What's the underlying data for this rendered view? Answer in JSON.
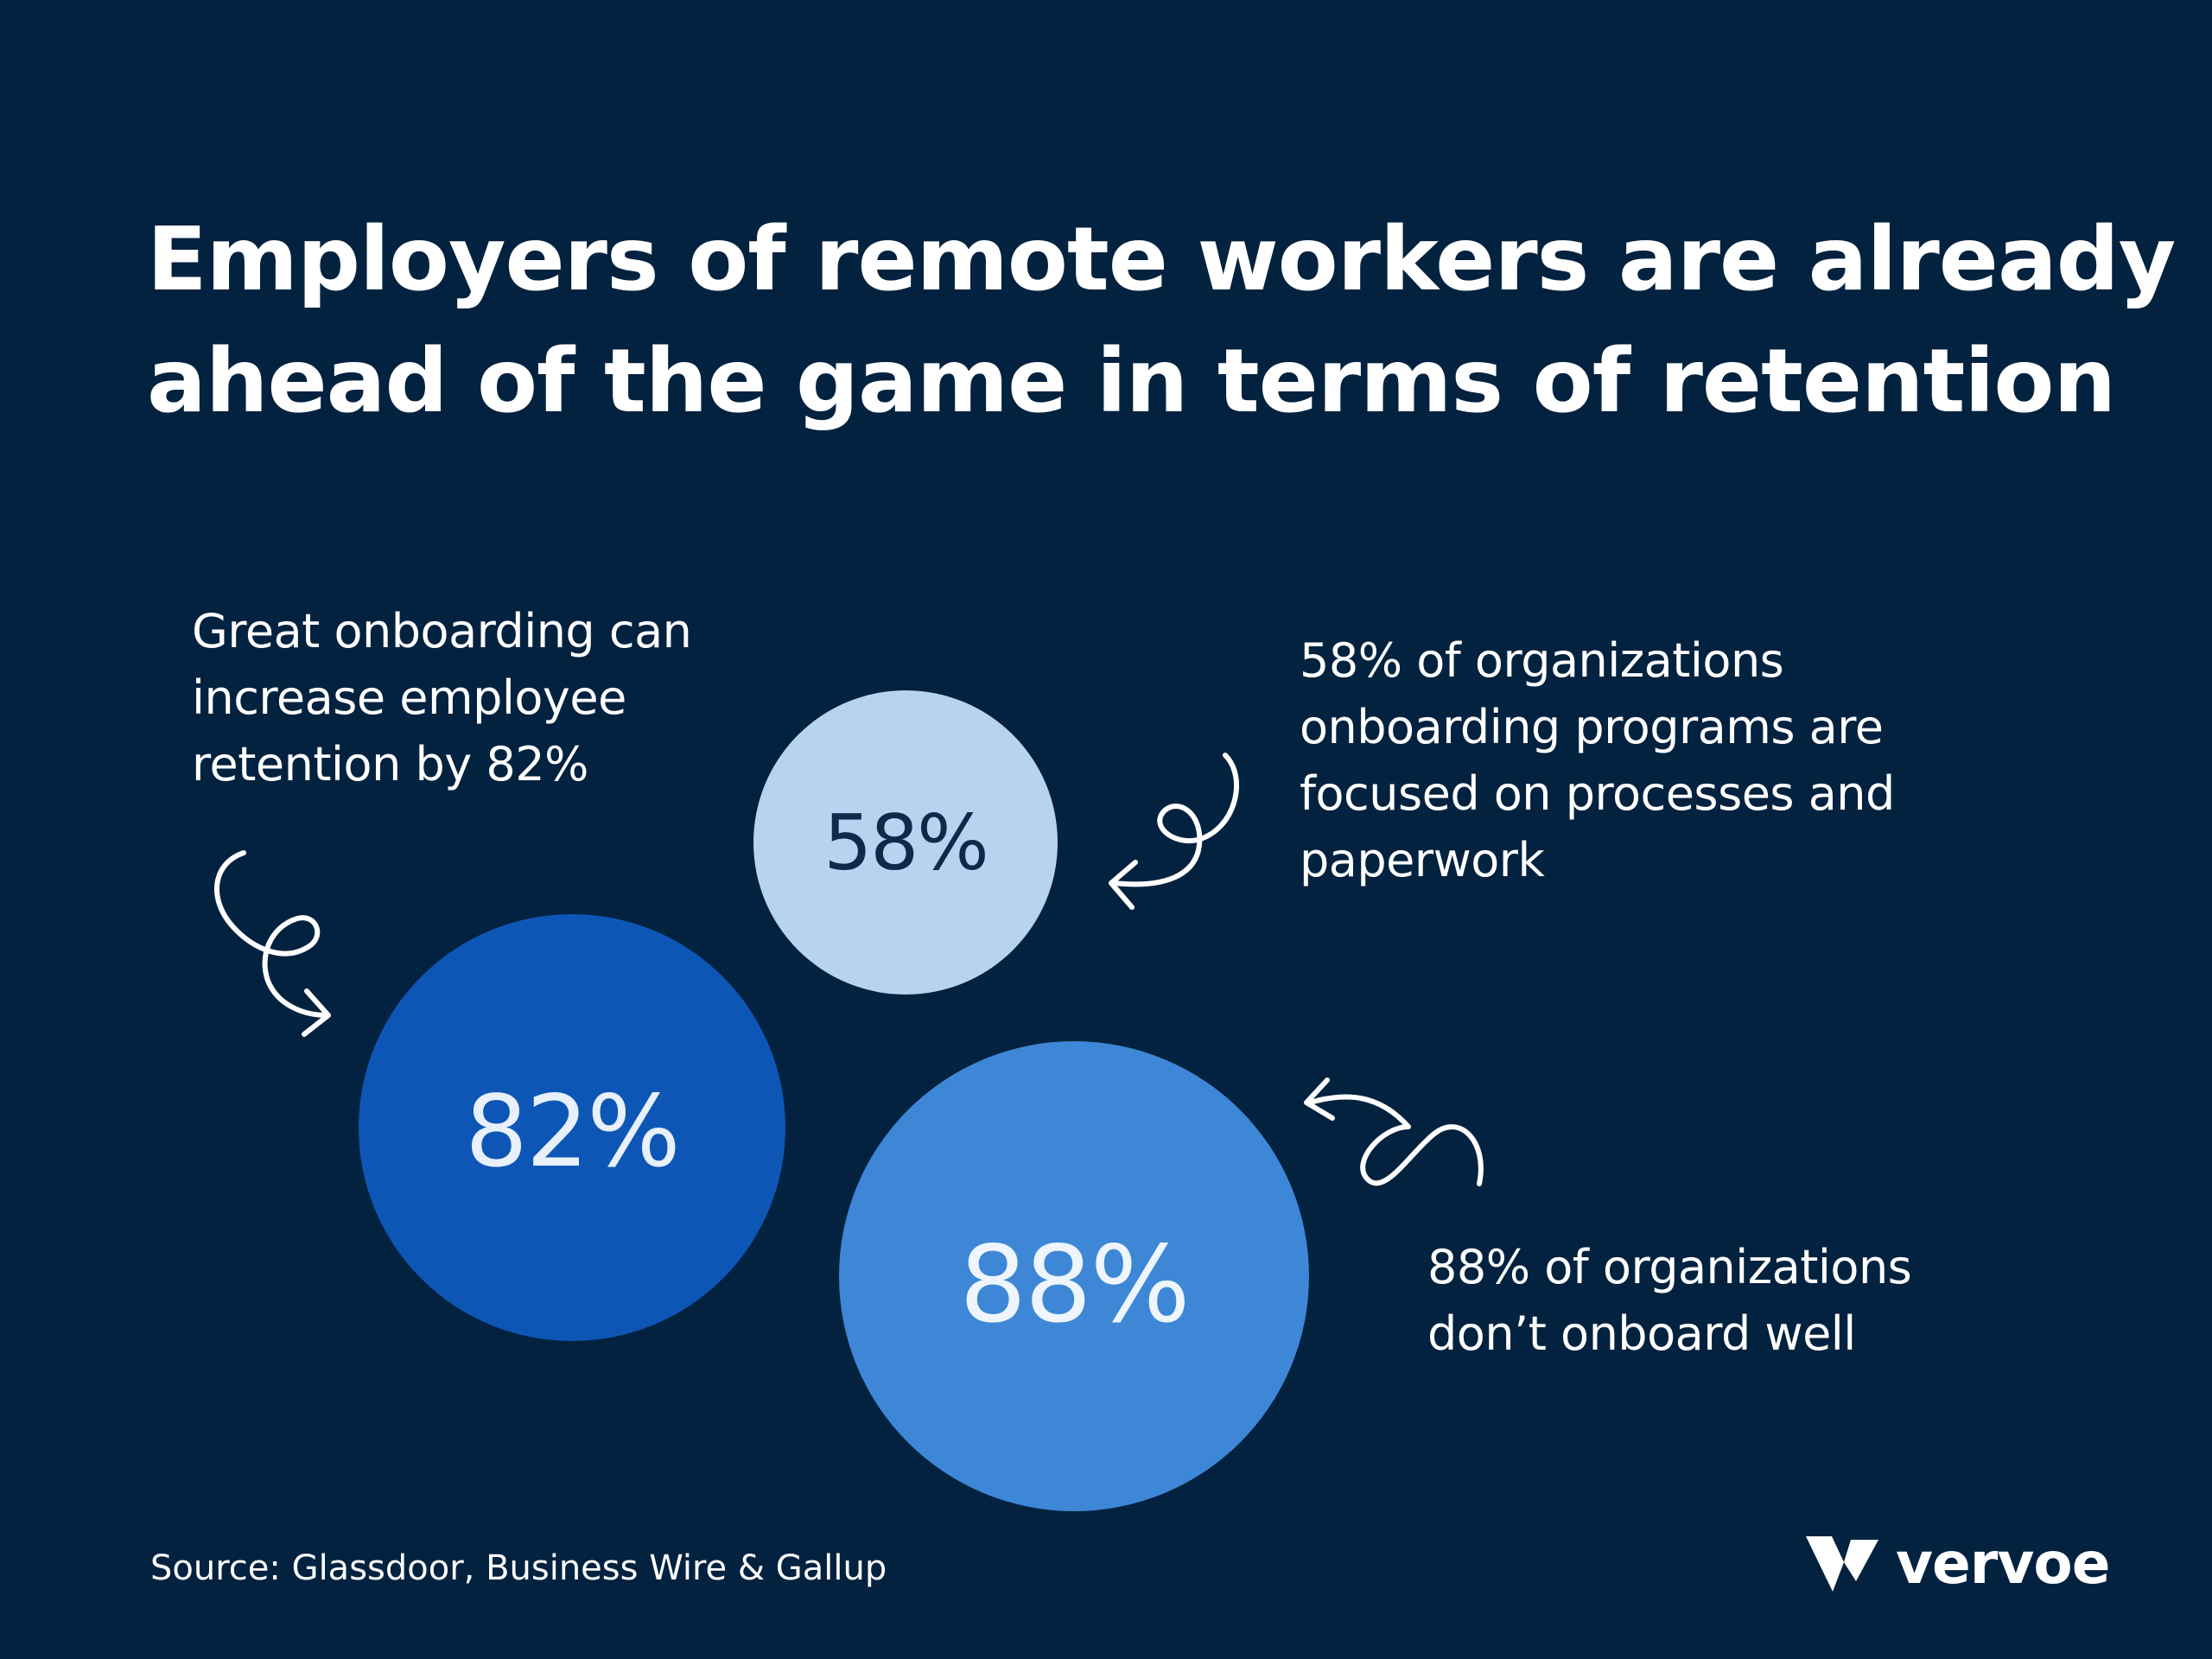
{
  "title": {
    "line1": "Employers of remote workers are already",
    "line2": "ahead of the game in terms of retention"
  },
  "stats": [
    {
      "value": "82%",
      "color": "#0d56b6",
      "text_color": "#e8f0fb",
      "caption": [
        "Great onboarding can",
        "increase employee",
        "retention by 82%"
      ]
    },
    {
      "value": "58%",
      "color": "#b8d3f0",
      "text_color": "#0d2a4a",
      "caption": [
        "58% of organizations",
        "onboarding programs are",
        "focused on processes and",
        "paperwork"
      ]
    },
    {
      "value": "88%",
      "color": "#3d87d6",
      "text_color": "#eef5fd",
      "caption": [
        "88% of organizations",
        "don’t onboard well"
      ]
    }
  ],
  "source": "Source: Glassdoor, Business Wire & Gallup",
  "brand": {
    "name": "vervoe",
    "icon": "vervoe-logo-icon"
  },
  "colors": {
    "background": "#03223f",
    "text": "#ffffff"
  }
}
